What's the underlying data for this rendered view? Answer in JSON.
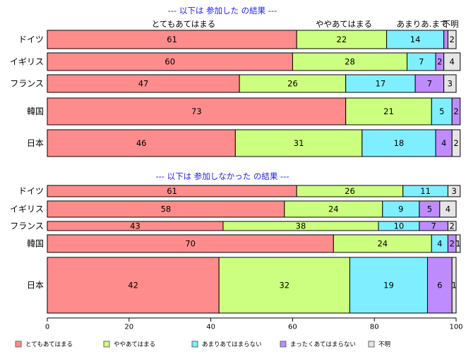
{
  "chart_data": {
    "type": "bar",
    "orientation": "horizontal",
    "stacked": true,
    "xlim": [
      0,
      100
    ],
    "x_ticks": [
      0,
      20,
      40,
      60,
      80,
      100
    ],
    "grid": false,
    "legend_position": "bottom",
    "legend": [
      {
        "label": "とてもあてはまる",
        "color": "#ff8c8c"
      },
      {
        "label": "ややあてはまる",
        "color": "#ccff7f"
      },
      {
        "label": "あまりあてはまらない",
        "color": "#7fefff"
      },
      {
        "label": "まったくあてはまらない",
        "color": "#bf8cff"
      },
      {
        "label": "不明",
        "color": "#e5e5e5"
      }
    ],
    "panels": [
      {
        "title": "--- 以下は 参加した の結果 ---",
        "column_labels": [
          "とてもあてはまる",
          "ややあてはまる",
          "あまりあ.まて",
          "不明"
        ],
        "categories": [
          "ドイツ",
          "イギリス",
          "フランス",
          "韓国",
          "日本"
        ],
        "values": [
          [
            61,
            22,
            14,
            1,
            2
          ],
          [
            60,
            28,
            7,
            2,
            4
          ],
          [
            47,
            26,
            17,
            7,
            3
          ],
          [
            73,
            21,
            5,
            2,
            0
          ],
          [
            46,
            31,
            18,
            4,
            2
          ]
        ],
        "labels": [
          [
            "61",
            "22",
            "14",
            "",
            "2"
          ],
          [
            "60",
            "28",
            "7",
            "2",
            "4"
          ],
          [
            "47",
            "26",
            "17",
            "7",
            "3"
          ],
          [
            "73",
            "21",
            "5",
            "2",
            ""
          ],
          [
            "46",
            "31",
            "18",
            "4",
            "2"
          ]
        ]
      },
      {
        "title": "--- 以下は 参加しなかった の結果 ---",
        "categories": [
          "ドイツ",
          "イギリス",
          "フランス",
          "韓国",
          "日本"
        ],
        "values": [
          [
            61,
            26,
            11,
            0,
            3
          ],
          [
            58,
            24,
            9,
            5,
            4
          ],
          [
            43,
            38,
            10,
            7,
            2
          ],
          [
            70,
            24,
            4,
            2,
            1
          ],
          [
            42,
            32,
            19,
            6,
            1
          ]
        ],
        "labels": [
          [
            "61",
            "26",
            "11",
            "",
            "3"
          ],
          [
            "58",
            "24",
            "9",
            "5",
            "4"
          ],
          [
            "43",
            "38",
            "10",
            "7",
            "2"
          ],
          [
            "70",
            "24",
            "4",
            "2",
            "1"
          ],
          [
            "42",
            "32",
            "19",
            "6",
            "1"
          ]
        ]
      }
    ]
  }
}
